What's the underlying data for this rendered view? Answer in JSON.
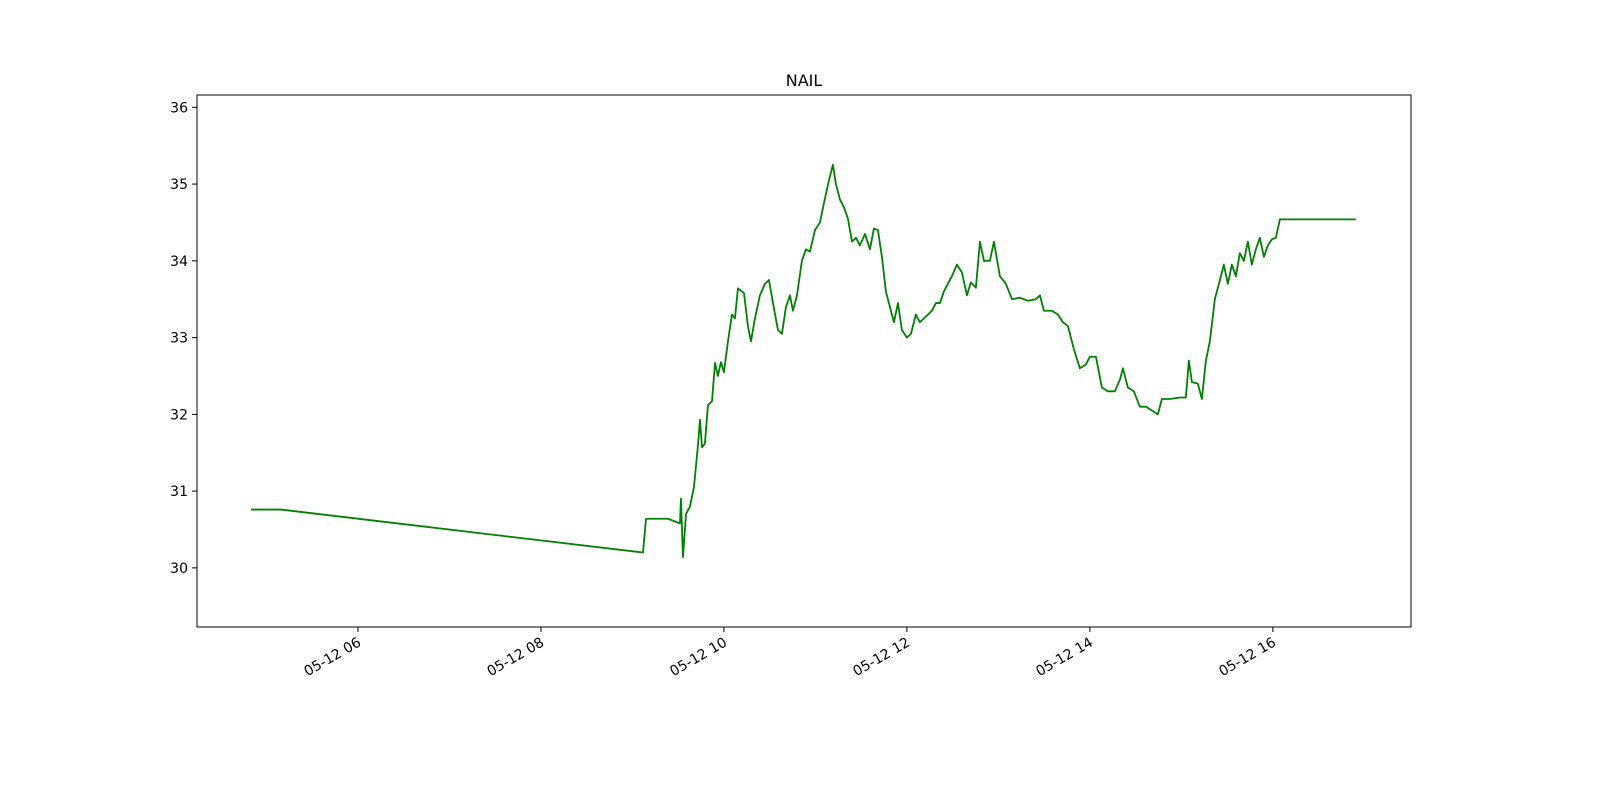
{
  "chart_data": {
    "type": "line",
    "title": "NAIL",
    "x": [
      4.831,
      5.158,
      9.115,
      9.148,
      9.388,
      9.519,
      9.53,
      9.552,
      9.585,
      9.628,
      9.672,
      9.716,
      9.738,
      9.76,
      9.792,
      9.825,
      9.869,
      9.902,
      9.934,
      9.967,
      10.0,
      10.044,
      10.087,
      10.12,
      10.153,
      10.219,
      10.262,
      10.295,
      10.339,
      10.393,
      10.448,
      10.492,
      10.536,
      10.59,
      10.634,
      10.678,
      10.721,
      10.754,
      10.798,
      10.852,
      10.896,
      10.94,
      10.995,
      11.049,
      11.093,
      11.148,
      11.191,
      11.224,
      11.268,
      11.311,
      11.355,
      11.399,
      11.443,
      11.486,
      11.541,
      11.596,
      11.639,
      11.683,
      11.727,
      11.77,
      11.814,
      11.858,
      11.902,
      11.945,
      12.0,
      12.044,
      12.098,
      12.142,
      12.186,
      12.23,
      12.273,
      12.317,
      12.361,
      12.404,
      12.448,
      12.492,
      12.546,
      12.601,
      12.656,
      12.699,
      12.754,
      12.798,
      12.842,
      12.907,
      12.951,
      13.016,
      13.082,
      13.148,
      13.235,
      13.322,
      13.41,
      13.454,
      13.497,
      13.585,
      13.65,
      13.705,
      13.76,
      13.825,
      13.891,
      13.956,
      14.0,
      14.066,
      14.131,
      14.197,
      14.273,
      14.328,
      14.361,
      14.415,
      14.481,
      14.546,
      14.612,
      14.678,
      14.743,
      14.787,
      14.874,
      14.984,
      15.049,
      15.082,
      15.115,
      15.18,
      15.224,
      15.268,
      15.311,
      15.366,
      15.421,
      15.464,
      15.508,
      15.552,
      15.596,
      15.639,
      15.683,
      15.727,
      15.77,
      15.814,
      15.858,
      15.902,
      15.945,
      15.989,
      16.033,
      16.077,
      16.907
    ],
    "series": [
      {
        "name": "NAIL",
        "color": "#008000",
        "values": [
          30.76,
          30.76,
          30.2,
          30.64,
          30.64,
          30.58,
          30.9,
          30.14,
          30.7,
          30.8,
          31.05,
          31.6,
          31.93,
          31.57,
          31.62,
          32.12,
          32.17,
          32.67,
          32.5,
          32.68,
          32.55,
          32.95,
          33.3,
          33.25,
          33.64,
          33.58,
          33.15,
          32.95,
          33.25,
          33.55,
          33.7,
          33.75,
          33.45,
          33.1,
          33.05,
          33.4,
          33.55,
          33.35,
          33.55,
          34.0,
          34.15,
          34.12,
          34.4,
          34.5,
          34.75,
          35.05,
          35.25,
          35.0,
          34.8,
          34.7,
          34.55,
          34.25,
          34.3,
          34.2,
          34.35,
          34.15,
          34.42,
          34.4,
          34.05,
          33.6,
          33.4,
          33.2,
          33.45,
          33.1,
          33.0,
          33.05,
          33.3,
          33.2,
          33.25,
          33.3,
          33.35,
          33.45,
          33.45,
          33.6,
          33.7,
          33.8,
          33.95,
          33.85,
          33.55,
          33.72,
          33.65,
          34.25,
          34.0,
          34.0,
          34.25,
          33.8,
          33.7,
          33.5,
          33.52,
          33.48,
          33.5,
          33.55,
          33.35,
          33.35,
          33.3,
          33.2,
          33.15,
          32.85,
          32.6,
          32.65,
          32.75,
          32.75,
          32.35,
          32.3,
          32.3,
          32.45,
          32.6,
          32.35,
          32.3,
          32.1,
          32.1,
          32.05,
          32.0,
          32.2,
          32.2,
          32.22,
          32.22,
          32.7,
          32.42,
          32.4,
          32.2,
          32.7,
          32.95,
          33.5,
          33.75,
          33.95,
          33.7,
          33.95,
          33.8,
          34.1,
          34.0,
          34.25,
          33.95,
          34.15,
          34.3,
          34.05,
          34.2,
          34.28,
          34.3,
          34.54,
          34.54
        ]
      }
    ],
    "xlim": [
      4.24,
      17.51
    ],
    "xticks": [
      {
        "value": 6,
        "label": "05-12 06"
      },
      {
        "value": 8,
        "label": "05-12 08"
      },
      {
        "value": 10,
        "label": "05-12 10"
      },
      {
        "value": 12,
        "label": "05-12 12"
      },
      {
        "value": 14,
        "label": "05-12 14"
      },
      {
        "value": 16,
        "label": "05-12 16"
      }
    ],
    "ylim": [
      29.23,
      36.16
    ],
    "yticks": [
      30,
      31,
      32,
      33,
      34,
      35,
      36
    ]
  }
}
